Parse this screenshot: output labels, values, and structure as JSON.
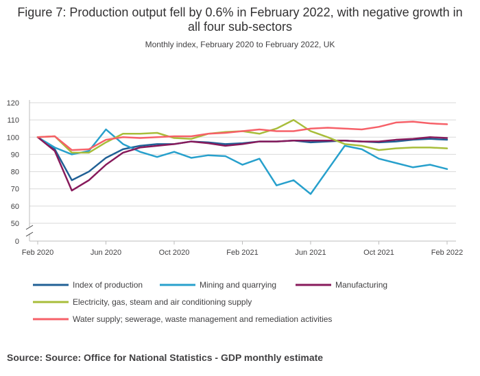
{
  "chart_data": {
    "type": "line",
    "title": "Figure 7: Production output fell by 0.6% in February 2022, with negative growth in all four sub-sectors",
    "subtitle": "Monthly index, February 2020 to February 2022, UK",
    "source": "Source: Source: Office for National Statistics - GDP monthly estimate",
    "x": [
      "Feb 2020",
      "Mar 2020",
      "Apr 2020",
      "May 2020",
      "Jun 2020",
      "Jul 2020",
      "Aug 2020",
      "Sep 2020",
      "Oct 2020",
      "Nov 2020",
      "Dec 2020",
      "Jan 2021",
      "Feb 2021",
      "Mar 2021",
      "Apr 2021",
      "May 2021",
      "Jun 2021",
      "Jul 2021",
      "Aug 2021",
      "Sep 2021",
      "Oct 2021",
      "Nov 2021",
      "Dec 2021",
      "Jan 2022",
      "Feb 2022"
    ],
    "x_tick_labels": [
      "Feb 2020",
      "Jun 2020",
      "Oct 2020",
      "Feb 2021",
      "Jun 2021",
      "Oct 2021",
      "Feb 2022"
    ],
    "y_tick_labels": [
      "0",
      "50",
      "60",
      "70",
      "80",
      "90",
      "100",
      "110",
      "120"
    ],
    "ylim": [
      50,
      120
    ],
    "y_axis_break": true,
    "grid": "horizontal",
    "legend_position": "bottom",
    "series": [
      {
        "name": "Index of production",
        "color": "#206095",
        "values": [
          100,
          93,
          75,
          80,
          88,
          93,
          95,
          96,
          96,
          97.5,
          97,
          96,
          96.5,
          97.5,
          97.5,
          98,
          97,
          97.5,
          98,
          97.5,
          97,
          97.5,
          98.5,
          99,
          98.5
        ]
      },
      {
        "name": "Mining and quarrying",
        "color": "#27a0cc",
        "values": [
          100,
          94,
          90,
          92,
          104.5,
          96,
          91.5,
          88.5,
          91.5,
          88,
          89.5,
          89,
          84,
          87.5,
          72,
          75,
          67,
          81,
          95,
          93,
          87.5,
          85,
          82.5,
          84,
          81.5
        ]
      },
      {
        "name": "Manufacturing",
        "color": "#871a5b",
        "values": [
          100,
          92,
          69,
          75,
          84,
          91,
          94,
          95,
          96,
          97.5,
          96.5,
          95,
          96,
          97.5,
          97.5,
          98,
          98,
          98,
          98,
          97.5,
          97.5,
          98.5,
          99,
          100,
          99.5
        ]
      },
      {
        "name": "Electricity, gas, steam and air conditioning supply",
        "color": "#a8bd3a",
        "values": [
          100,
          100.5,
          91,
          91,
          97,
          102,
          102,
          102.5,
          99.5,
          99,
          102,
          103,
          103.5,
          102,
          105,
          110,
          103.5,
          100,
          96,
          95,
          92.5,
          93.5,
          94,
          94,
          93.5
        ]
      },
      {
        "name": "Water supply; sewerage, waste management and remediation activities",
        "color": "#f66068",
        "values": [
          100,
          100.5,
          92.5,
          93,
          98.5,
          100,
          99.5,
          100,
          100.5,
          100.5,
          102,
          102.5,
          103.5,
          104.5,
          103.5,
          103.5,
          105,
          105.5,
          105,
          104.5,
          106,
          108.5,
          109,
          108,
          107.5
        ]
      }
    ]
  }
}
